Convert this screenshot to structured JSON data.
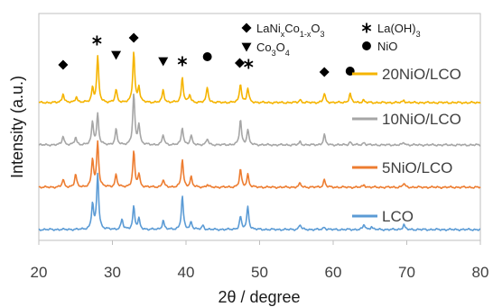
{
  "chart_data": {
    "type": "line",
    "xlabel": "2θ / degree",
    "ylabel": "Intensity (a.u.)",
    "xlim": [
      20,
      80
    ],
    "xticks": [
      20,
      30,
      40,
      50,
      60,
      70,
      80
    ],
    "grid": false,
    "legend_placement": "right, beside each curve",
    "series": [
      {
        "name": "20NiO/LCO",
        "color": "#f5b400",
        "offset": 3.0,
        "peaks": [
          [
            23.3,
            0.18
          ],
          [
            25.1,
            0.12
          ],
          [
            27.3,
            0.28
          ],
          [
            28.0,
            0.9
          ],
          [
            30.5,
            0.25
          ],
          [
            32.9,
            1.0
          ],
          [
            33.6,
            0.3
          ],
          [
            36.9,
            0.25
          ],
          [
            39.5,
            0.5
          ],
          [
            40.5,
            0.15
          ],
          [
            42.9,
            0.3
          ],
          [
            47.4,
            0.38
          ],
          [
            48.4,
            0.28
          ],
          [
            55.5,
            0.06
          ],
          [
            58.8,
            0.18
          ],
          [
            62.3,
            0.18
          ],
          [
            64.1,
            0.05
          ],
          [
            69.6,
            0.05
          ]
        ]
      },
      {
        "name": "10NiO/LCO",
        "color": "#a6a6a6",
        "offset": 2.0,
        "peaks": [
          [
            23.3,
            0.18
          ],
          [
            25.0,
            0.15
          ],
          [
            27.3,
            0.45
          ],
          [
            28.0,
            0.6
          ],
          [
            30.5,
            0.3
          ],
          [
            32.9,
            1.0
          ],
          [
            33.6,
            0.4
          ],
          [
            36.9,
            0.2
          ],
          [
            39.5,
            0.35
          ],
          [
            40.7,
            0.18
          ],
          [
            42.9,
            0.12
          ],
          [
            47.4,
            0.5
          ],
          [
            48.4,
            0.3
          ],
          [
            55.5,
            0.06
          ],
          [
            58.8,
            0.2
          ],
          [
            62.3,
            0.06
          ],
          [
            64.2,
            0.05
          ],
          [
            69.6,
            0.05
          ]
        ]
      },
      {
        "name": "5NiO/LCO",
        "color": "#ed7d31",
        "offset": 1.0,
        "peaks": [
          [
            23.3,
            0.15
          ],
          [
            25.0,
            0.25
          ],
          [
            27.3,
            0.55
          ],
          [
            28.0,
            0.9
          ],
          [
            30.5,
            0.25
          ],
          [
            32.9,
            0.7
          ],
          [
            33.6,
            0.25
          ],
          [
            36.9,
            0.15
          ],
          [
            39.5,
            0.55
          ],
          [
            40.7,
            0.2
          ],
          [
            42.9,
            0.05
          ],
          [
            47.4,
            0.35
          ],
          [
            48.4,
            0.25
          ],
          [
            55.5,
            0.08
          ],
          [
            58.8,
            0.15
          ],
          [
            64.2,
            0.05
          ],
          [
            69.6,
            0.08
          ]
        ]
      },
      {
        "name": "LCO",
        "color": "#5b9bd5",
        "offset": 0.0,
        "peaks": [
          [
            27.3,
            0.5
          ],
          [
            28.0,
            1.1
          ],
          [
            31.3,
            0.2
          ],
          [
            32.9,
            0.45
          ],
          [
            33.6,
            0.2
          ],
          [
            36.9,
            0.18
          ],
          [
            39.5,
            0.65
          ],
          [
            40.7,
            0.15
          ],
          [
            42.3,
            0.08
          ],
          [
            47.4,
            0.25
          ],
          [
            48.4,
            0.45
          ],
          [
            55.5,
            0.1
          ],
          [
            58.8,
            0.05
          ],
          [
            64.2,
            0.1
          ],
          [
            65.2,
            0.06
          ],
          [
            69.6,
            0.1
          ]
        ]
      }
    ],
    "marker_legend": [
      {
        "symbol": "diamond",
        "label": "LaNixCo1-xO3"
      },
      {
        "symbol": "asterisk",
        "label": "La(OH)3"
      },
      {
        "symbol": "triangle-down",
        "label": "Co3O4"
      },
      {
        "symbol": "circle",
        "label": "NiO"
      }
    ],
    "phase_markers": [
      {
        "symbol": "diamond",
        "x": 23.3
      },
      {
        "symbol": "asterisk",
        "x": 27.9
      },
      {
        "symbol": "triangle-down",
        "x": 30.5
      },
      {
        "symbol": "diamond",
        "x": 32.9
      },
      {
        "symbol": "triangle-down",
        "x": 36.9
      },
      {
        "symbol": "asterisk",
        "x": 39.5
      },
      {
        "symbol": "circle",
        "x": 42.9
      },
      {
        "symbol": "diamond",
        "x": 47.3
      },
      {
        "symbol": "asterisk",
        "x": 48.5
      },
      {
        "symbol": "diamond",
        "x": 58.8
      },
      {
        "symbol": "circle",
        "x": 62.3
      }
    ]
  }
}
